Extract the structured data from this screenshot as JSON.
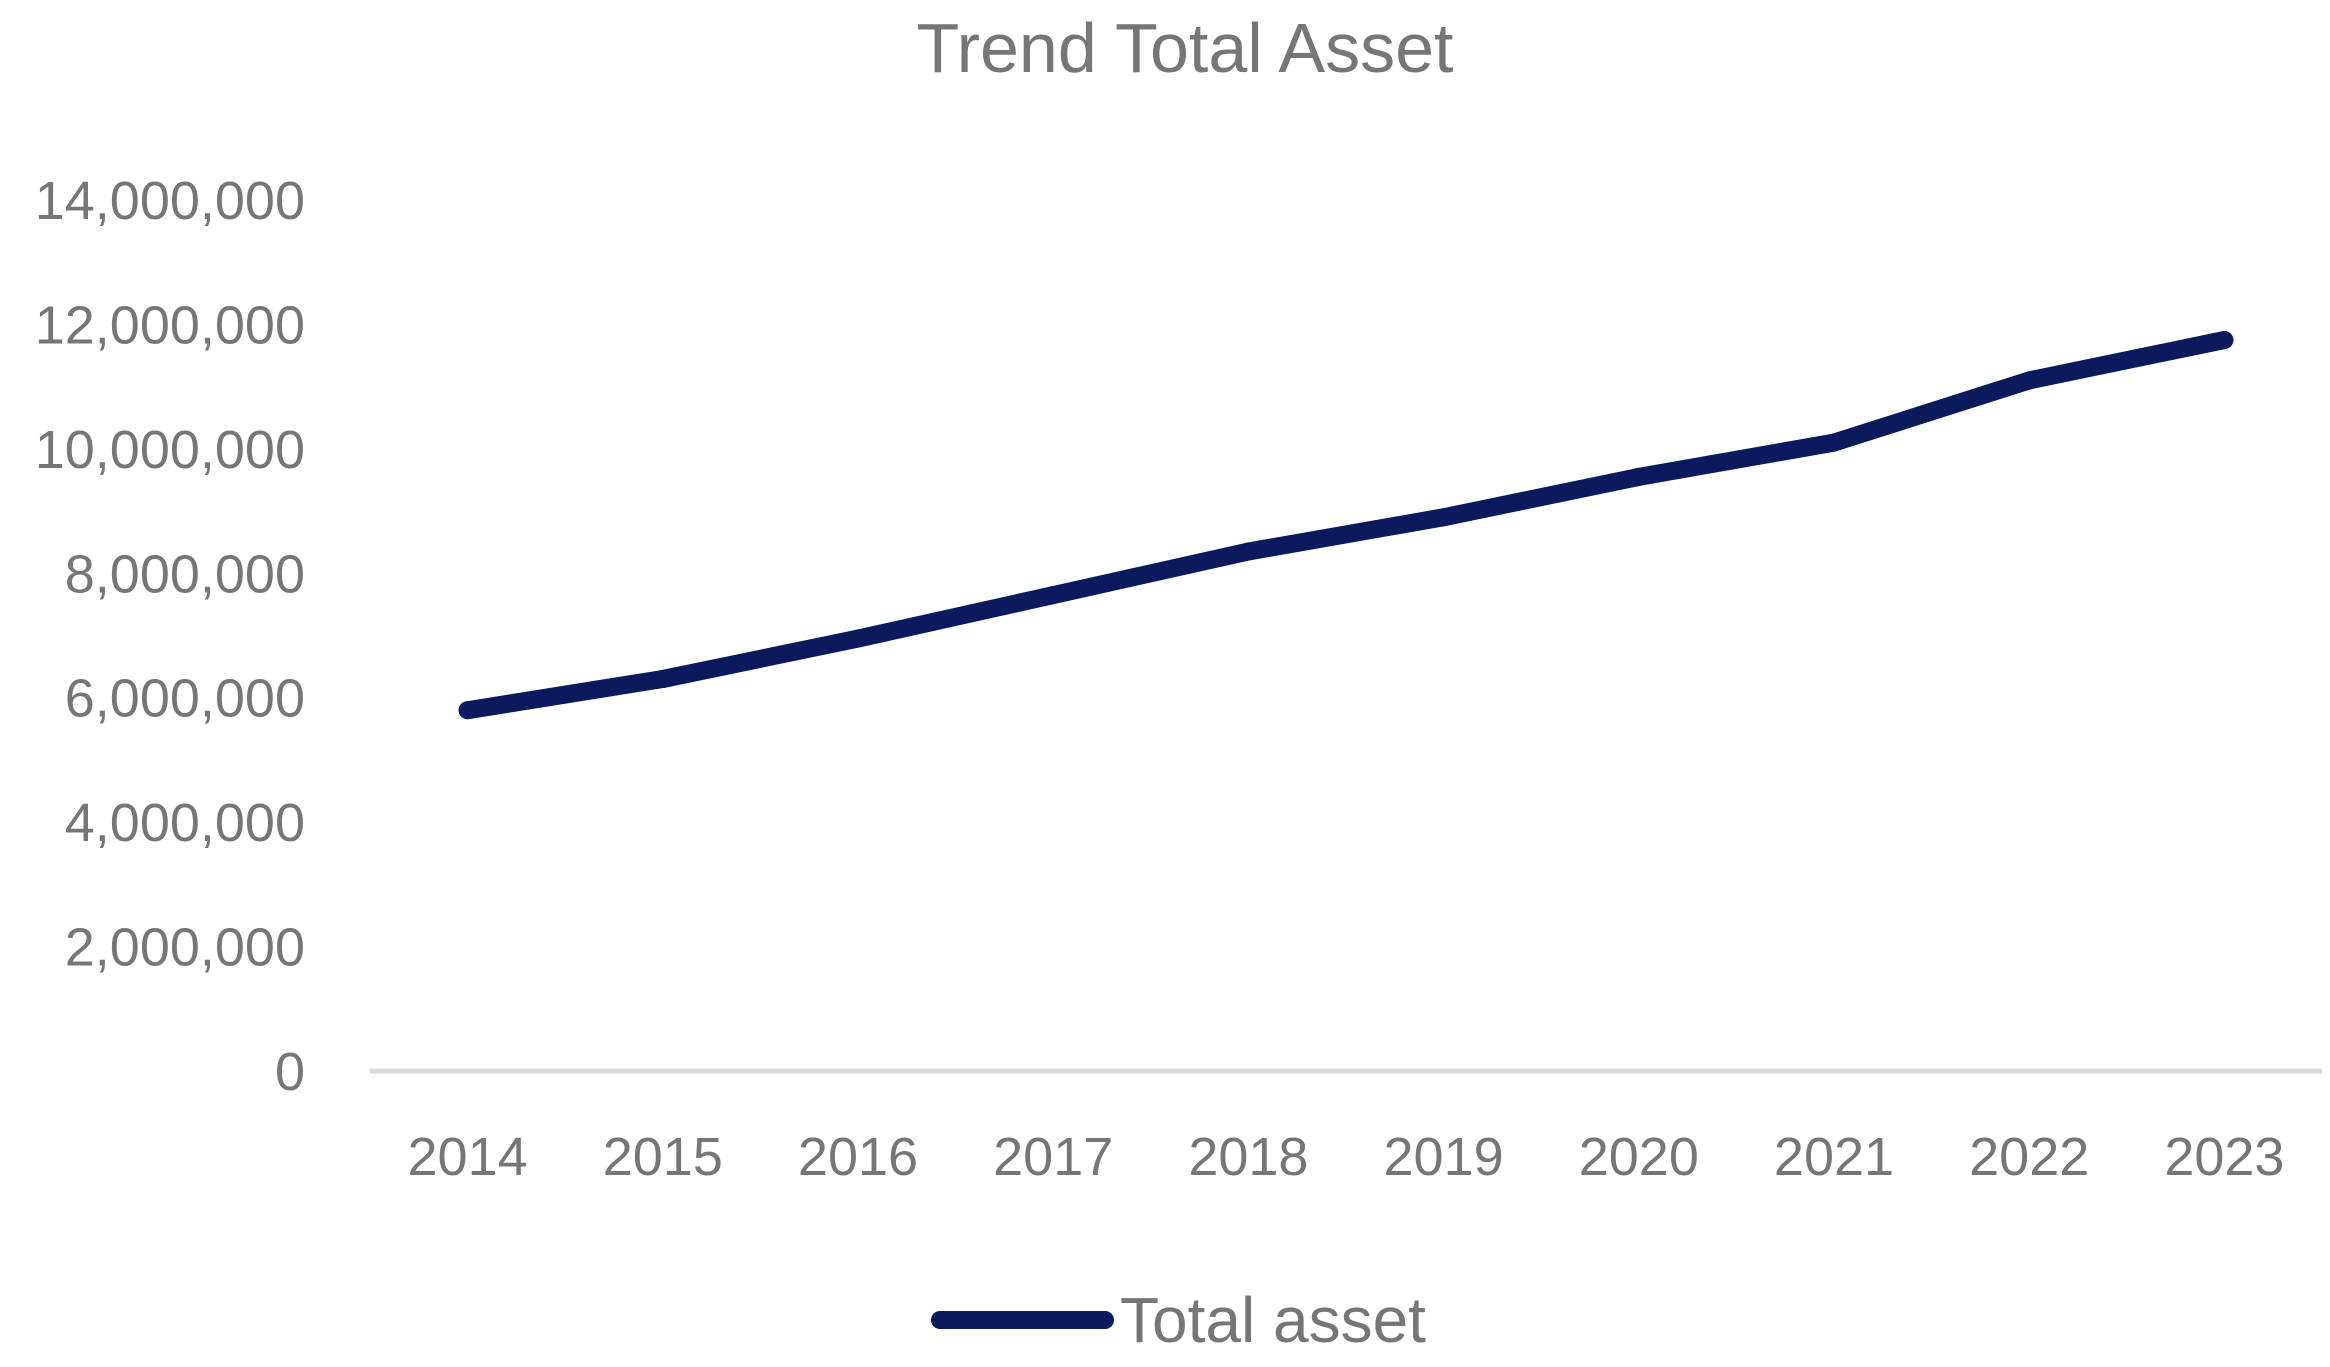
{
  "chart_data": {
    "type": "line",
    "title": "Trend Total Asset",
    "xlabel": "",
    "ylabel": "",
    "categories": [
      "2014",
      "2015",
      "2016",
      "2017",
      "2018",
      "2019",
      "2020",
      "2021",
      "2022",
      "2023"
    ],
    "series": [
      {
        "name": "Total asset",
        "values": [
          5800000,
          6300000,
          6950000,
          7650000,
          8350000,
          8900000,
          9550000,
          10100000,
          11100000,
          11750000
        ],
        "color": "#0b1a5c"
      }
    ],
    "ylim": [
      0,
      14000000
    ],
    "yticks": [
      0,
      2000000,
      4000000,
      6000000,
      8000000,
      10000000,
      12000000,
      14000000
    ],
    "ytick_labels": [
      "0",
      "2,000,000",
      "4,000,000",
      "6,000,000",
      "8,000,000",
      "10,000,000",
      "12,000,000",
      "14,000,000"
    ],
    "grid": false,
    "legend_position": "bottom",
    "axis_color": "#d9d9d9",
    "text_color": "#767676"
  }
}
